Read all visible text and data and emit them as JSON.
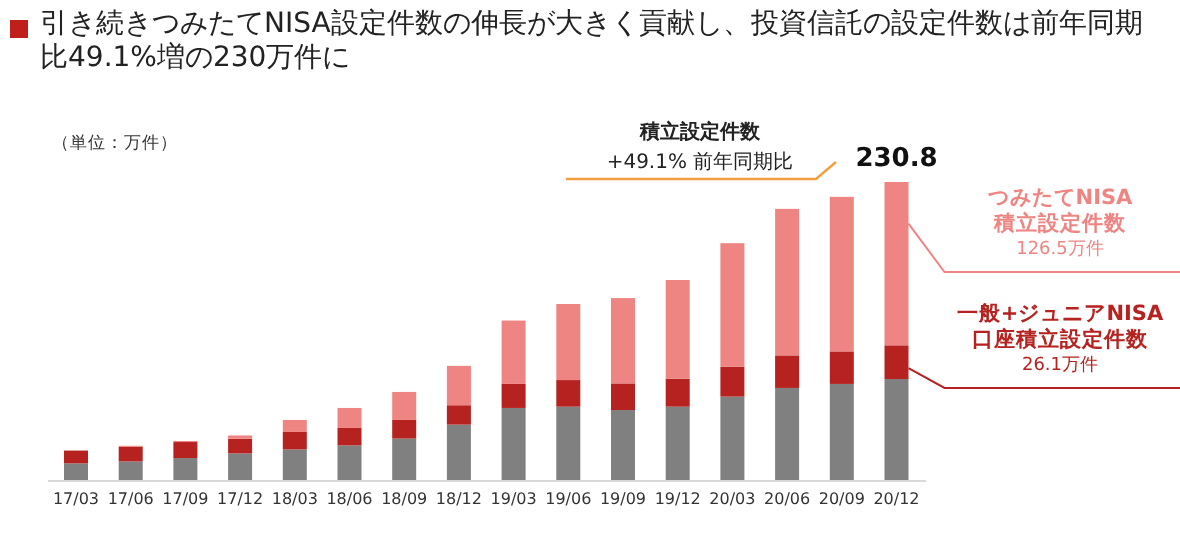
{
  "chart_data": {
    "type": "bar",
    "stacked": true,
    "title": "引き続きつみたてNISA設定件数の伸長が大きく貢献し、投資信託の設定件数は前年同期比49.1%増の230万件に",
    "categories": [
      "17/03",
      "17/06",
      "17/09",
      "17/12",
      "18/03",
      "18/06",
      "18/09",
      "18/12",
      "19/03",
      "19/06",
      "19/09",
      "19/12",
      "20/03",
      "20/06",
      "20/09",
      "20/12"
    ],
    "series": [
      {
        "color": "#808080",
        "values": [
          12.9,
          14.4,
          17.0,
          20.6,
          23.7,
          26.8,
          32.1,
          42.9,
          55.8,
          56.8,
          54.2,
          56.8,
          64.6,
          71.3,
          74.4,
          78.2
        ]
      },
      {
        "name": "一般+ジュニアNISA口座積立設定件数",
        "color": "#b5221f",
        "values": [
          9.9,
          11.3,
          12.4,
          11.3,
          13.5,
          13.5,
          14.4,
          15.0,
          18.6,
          20.6,
          20.6,
          21.7,
          23.2,
          25.2,
          25.2,
          26.1
        ],
        "value_labels": [
          null,
          null,
          null,
          null,
          null,
          null,
          null,
          null,
          null,
          null,
          null,
          null,
          null,
          null,
          null,
          "26.1万件"
        ]
      },
      {
        "name": "つみたてNISA積立設定件数",
        "color": "#ef8583",
        "values": [
          0,
          0.8,
          0.8,
          2.6,
          9.3,
          15.5,
          21.7,
          30.5,
          49.1,
          58.9,
          66.1,
          76.4,
          95.6,
          113.5,
          119.7,
          126.5
        ],
        "value_labels": [
          null,
          null,
          null,
          null,
          null,
          null,
          null,
          null,
          null,
          null,
          null,
          null,
          null,
          null,
          null,
          "126.5万件"
        ]
      }
    ],
    "totals": [
      null,
      null,
      null,
      null,
      null,
      null,
      null,
      null,
      null,
      null,
      null,
      null,
      null,
      null,
      null,
      "230.8"
    ],
    "annotations": [
      "（単位：万件）",
      "積立設定件数",
      "+49.1% 前年同期比"
    ]
  }
}
